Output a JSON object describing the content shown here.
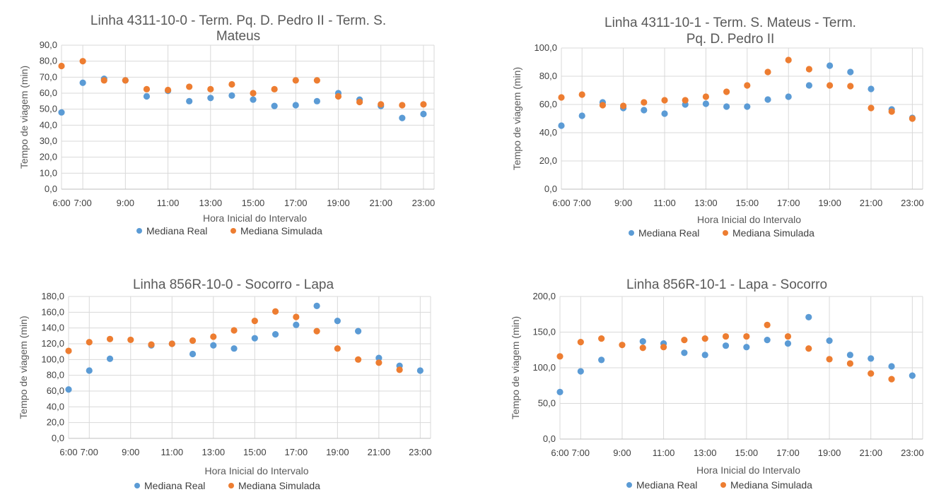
{
  "chart_data": [
    {
      "type": "scatter",
      "title": "Linha 4311-10-0 - Term. Pq. D. Pedro II - Term. S. Mateus",
      "title_lines": [
        "Linha 4311-10-0 - Term. Pq. D. Pedro II - Term. S.",
        "Mateus"
      ],
      "xlabel": "Hora Inicial do Intervalo",
      "ylabel": "Tempo de viagem (min)",
      "xlim": [
        6,
        23.5
      ],
      "ylim": [
        0,
        90
      ],
      "x_ticks": [
        6,
        7,
        9,
        11,
        13,
        15,
        17,
        19,
        21,
        23
      ],
      "x_tick_labels": [
        "6:00",
        "7:00",
        "9:00",
        "11:00",
        "13:00",
        "15:00",
        "17:00",
        "19:00",
        "21:00",
        "23:00"
      ],
      "y_ticks": [
        0,
        10,
        20,
        30,
        40,
        50,
        60,
        70,
        80,
        90
      ],
      "y_tick_labels": [
        "0,0",
        "10,0",
        "20,0",
        "30,0",
        "40,0",
        "50,0",
        "60,0",
        "70,0",
        "80,0",
        "90,0"
      ],
      "grid": true,
      "legend_position": "bottom",
      "series": [
        {
          "name": "Mediana Real",
          "color": "#5B9BD5",
          "x": [
            6,
            7,
            8,
            9,
            10,
            11,
            12,
            13,
            14,
            15,
            16,
            17,
            18,
            19,
            20,
            21,
            22,
            23
          ],
          "values": [
            48,
            66.5,
            69,
            68,
            58,
            61.5,
            55,
            57,
            58.5,
            56,
            52,
            52.5,
            55,
            60,
            56,
            52,
            44.5,
            47
          ]
        },
        {
          "name": "Mediana Simulada",
          "color": "#ED7D31",
          "x": [
            6,
            7,
            8,
            9,
            10,
            11,
            12,
            13,
            14,
            15,
            16,
            17,
            18,
            19,
            20,
            21,
            22,
            23
          ],
          "values": [
            77,
            80,
            68,
            68,
            62.5,
            62,
            64,
            62.5,
            65.5,
            60,
            62.5,
            68,
            68,
            58,
            54.5,
            53,
            52.5,
            53
          ]
        }
      ]
    },
    {
      "type": "scatter",
      "title": "Linha 4311-10-1 - Term. S. Mateus - Term. Pq. D. Pedro II",
      "title_lines": [
        "Linha 4311-10-1 - Term. S. Mateus -  Term.",
        "Pq. D. Pedro II"
      ],
      "xlabel": "Hora Inicial do Intervalo",
      "ylabel": "Tempo de viagem (min)",
      "xlim": [
        6,
        23.5
      ],
      "ylim": [
        0,
        100
      ],
      "x_ticks": [
        6,
        7,
        9,
        11,
        13,
        15,
        17,
        19,
        21,
        23
      ],
      "x_tick_labels": [
        "6:00",
        "7:00",
        "9:00",
        "11:00",
        "13:00",
        "15:00",
        "17:00",
        "19:00",
        "21:00",
        "23:00"
      ],
      "y_ticks": [
        0,
        20,
        40,
        60,
        80,
        100
      ],
      "y_tick_labels": [
        "0,0",
        "20,0",
        "40,0",
        "60,0",
        "80,0",
        "100,0"
      ],
      "grid": true,
      "legend_position": "bottom",
      "series": [
        {
          "name": "Mediana Real",
          "color": "#5B9BD5",
          "x": [
            6,
            7,
            8,
            9,
            10,
            11,
            12,
            13,
            14,
            15,
            16,
            17,
            18,
            19,
            20,
            21,
            22,
            23
          ],
          "values": [
            45,
            52,
            61.5,
            57.5,
            56,
            53.5,
            60,
            60.5,
            58.5,
            58.5,
            63.5,
            65.5,
            73.5,
            87.5,
            83,
            71,
            56.5,
            50.5
          ]
        },
        {
          "name": "Mediana Simulada",
          "color": "#ED7D31",
          "x": [
            6,
            7,
            8,
            9,
            10,
            11,
            12,
            13,
            14,
            15,
            16,
            17,
            18,
            19,
            20,
            21,
            22,
            23
          ],
          "values": [
            65,
            67,
            59.5,
            59,
            61.5,
            63,
            63,
            65.5,
            69,
            73.5,
            83,
            91.5,
            85,
            73.5,
            73,
            57.5,
            55,
            50
          ]
        }
      ]
    },
    {
      "type": "scatter",
      "title": "Linha 856R-10-0 - Socorro - Lapa",
      "title_lines": [
        "Linha 856R-10-0 - Socorro - Lapa"
      ],
      "xlabel": "Hora Inicial do Intervalo",
      "ylabel": "Tempo de viagem (min)",
      "xlim": [
        6,
        23.5
      ],
      "ylim": [
        0,
        180
      ],
      "x_ticks": [
        6,
        7,
        9,
        11,
        13,
        15,
        17,
        19,
        21,
        23
      ],
      "x_tick_labels": [
        "6:00",
        "7:00",
        "9:00",
        "11:00",
        "13:00",
        "15:00",
        "17:00",
        "19:00",
        "21:00",
        "23:00"
      ],
      "y_ticks": [
        0,
        20,
        40,
        60,
        80,
        100,
        120,
        140,
        160,
        180
      ],
      "y_tick_labels": [
        "0,0",
        "20,0",
        "40,0",
        "60,0",
        "80,0",
        "100,0",
        "120,0",
        "140,0",
        "160,0",
        "180,0"
      ],
      "grid": true,
      "legend_position": "bottom",
      "series": [
        {
          "name": "Mediana Real",
          "color": "#5B9BD5",
          "x": [
            6,
            7,
            8,
            10,
            11,
            12,
            13,
            14,
            15,
            16,
            17,
            18,
            19,
            20,
            21,
            22,
            23
          ],
          "values": [
            62,
            86,
            101,
            118,
            120,
            107,
            118,
            114,
            127,
            132,
            144,
            168,
            149,
            136,
            102,
            92,
            86
          ]
        },
        {
          "name": "Mediana Simulada",
          "color": "#ED7D31",
          "x": [
            6,
            7,
            8,
            9,
            10,
            11,
            12,
            13,
            14,
            15,
            16,
            17,
            18,
            19,
            20,
            21,
            22
          ],
          "values": [
            111,
            122,
            126,
            125,
            119,
            120,
            124,
            129,
            137,
            149,
            161,
            154,
            136,
            114,
            100,
            96,
            87
          ]
        }
      ]
    },
    {
      "type": "scatter",
      "title": "Linha 856R-10-1 - Lapa - Socorro",
      "title_lines": [
        "Linha 856R-10-1 - Lapa - Socorro"
      ],
      "xlabel": "Hora Inicial do Intervalo",
      "ylabel": "Tempo de viagem (min)",
      "xlim": [
        6,
        23.5
      ],
      "ylim": [
        0,
        200
      ],
      "x_ticks": [
        6,
        7,
        9,
        11,
        13,
        15,
        17,
        19,
        21,
        23
      ],
      "x_tick_labels": [
        "6:00",
        "7:00",
        "9:00",
        "11:00",
        "13:00",
        "15:00",
        "17:00",
        "19:00",
        "21:00",
        "23:00"
      ],
      "y_ticks": [
        0,
        50,
        100,
        150,
        200
      ],
      "y_tick_labels": [
        "0,0",
        "50,0",
        "100,0",
        "150,0",
        "200,0"
      ],
      "grid": true,
      "legend_position": "bottom",
      "series": [
        {
          "name": "Mediana Real",
          "color": "#5B9BD5",
          "x": [
            6,
            7,
            8,
            10,
            11,
            12,
            13,
            14,
            15,
            16,
            17,
            18,
            19,
            20,
            21,
            22,
            23
          ],
          "values": [
            66,
            95,
            111,
            137,
            134,
            121,
            118,
            131,
            129,
            139,
            134,
            171,
            138,
            118,
            113,
            102,
            89
          ]
        },
        {
          "name": "Mediana Simulada",
          "color": "#ED7D31",
          "x": [
            6,
            7,
            8,
            9,
            10,
            11,
            12,
            13,
            14,
            15,
            16,
            17,
            18,
            19,
            20,
            21,
            22
          ],
          "values": [
            116,
            136,
            141,
            132,
            128,
            129,
            139,
            141,
            144,
            144,
            160,
            144,
            127,
            112,
            106,
            92,
            84
          ]
        }
      ]
    }
  ]
}
